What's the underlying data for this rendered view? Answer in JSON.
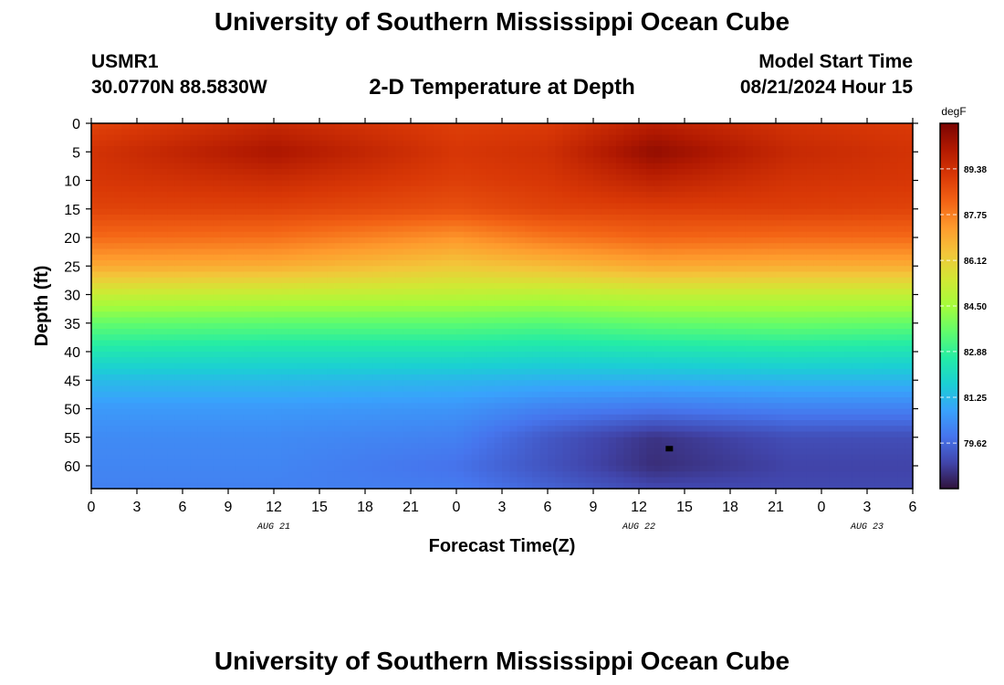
{
  "header": {
    "title": "University of Southern Mississippi Ocean Cube",
    "station_id": "USMR1",
    "coordinates": "30.0770N  88.5830W",
    "model_label": "Model Start Time",
    "model_start": "08/21/2024 Hour 15"
  },
  "footer": {
    "title": "University of Southern Mississippi Ocean Cube"
  },
  "chart_data": {
    "type": "heatmap",
    "title": "2-D Temperature at Depth",
    "xlabel": "Forecast Time(Z)",
    "ylabel": "Depth (ft)",
    "x_tick_labels": [
      "0",
      "3",
      "6",
      "9",
      "12",
      "15",
      "18",
      "21",
      "0",
      "3",
      "6",
      "9",
      "12",
      "15",
      "18",
      "21",
      "0",
      "3",
      "6"
    ],
    "x_range_hours": [
      0,
      54
    ],
    "date_labels": [
      {
        "text": "AUG 21",
        "hour": 12
      },
      {
        "text": "AUG 22",
        "hour": 36
      },
      {
        "text": "AUG 23",
        "hour": 51
      }
    ],
    "y_ticks": [
      0,
      5,
      10,
      15,
      20,
      25,
      30,
      35,
      40,
      45,
      50,
      55,
      60
    ],
    "y_range": [
      0,
      64
    ],
    "y_inverted": true,
    "colorbar": {
      "unit": "degF",
      "ticks": [
        "89.38",
        "87.75",
        "86.12",
        "84.50",
        "82.88",
        "81.25",
        "79.62"
      ],
      "range": [
        78.0,
        91.0
      ],
      "colormap": [
        "#30123b",
        "#4145ab",
        "#4675ed",
        "#39a2fc",
        "#1bcfd4",
        "#24eca6",
        "#61fc6c",
        "#a4fc3b",
        "#d1e834",
        "#f3c63a",
        "#fe9b2d",
        "#f36315",
        "#d93806",
        "#b11901",
        "#7a0402"
      ]
    },
    "depths": [
      0,
      5,
      10,
      15,
      20,
      25,
      30,
      35,
      40,
      45,
      50,
      55,
      60,
      64
    ],
    "profiles": [
      {
        "hour": 0,
        "temps": [
          88.9,
          89.3,
          89.2,
          88.9,
          88.1,
          87.0,
          85.2,
          83.6,
          82.4,
          81.3,
          80.6,
          80.3,
          80.2,
          80.1
        ]
      },
      {
        "hour": 12,
        "temps": [
          89.6,
          90.2,
          89.5,
          88.9,
          88.0,
          86.9,
          85.1,
          83.5,
          82.3,
          81.3,
          80.6,
          80.3,
          80.2,
          80.1
        ]
      },
      {
        "hour": 24,
        "temps": [
          89.0,
          89.2,
          89.0,
          88.6,
          87.4,
          86.3,
          85.0,
          83.5,
          82.3,
          81.2,
          80.5,
          80.1,
          79.8,
          80.0
        ]
      },
      {
        "hour": 30,
        "temps": [
          89.1,
          89.4,
          89.2,
          88.9,
          87.9,
          86.6,
          84.9,
          83.4,
          82.2,
          81.1,
          80.1,
          79.3,
          79.2,
          79.5
        ]
      },
      {
        "hour": 37,
        "temps": [
          89.9,
          90.6,
          89.8,
          89.0,
          88.2,
          87.0,
          85.1,
          83.6,
          82.3,
          81.1,
          79.9,
          78.6,
          78.5,
          79.0
        ]
      },
      {
        "hour": 46,
        "temps": [
          89.3,
          89.6,
          89.3,
          89.0,
          88.1,
          86.9,
          85.1,
          83.7,
          82.4,
          81.2,
          80.1,
          79.1,
          78.9,
          79.0
        ]
      },
      {
        "hour": 54,
        "temps": [
          89.1,
          89.3,
          89.2,
          88.9,
          88.1,
          86.9,
          85.1,
          83.6,
          82.3,
          81.2,
          80.1,
          79.1,
          78.9,
          79.0
        ]
      }
    ],
    "marker": {
      "hour": 38,
      "depth": 57
    }
  }
}
